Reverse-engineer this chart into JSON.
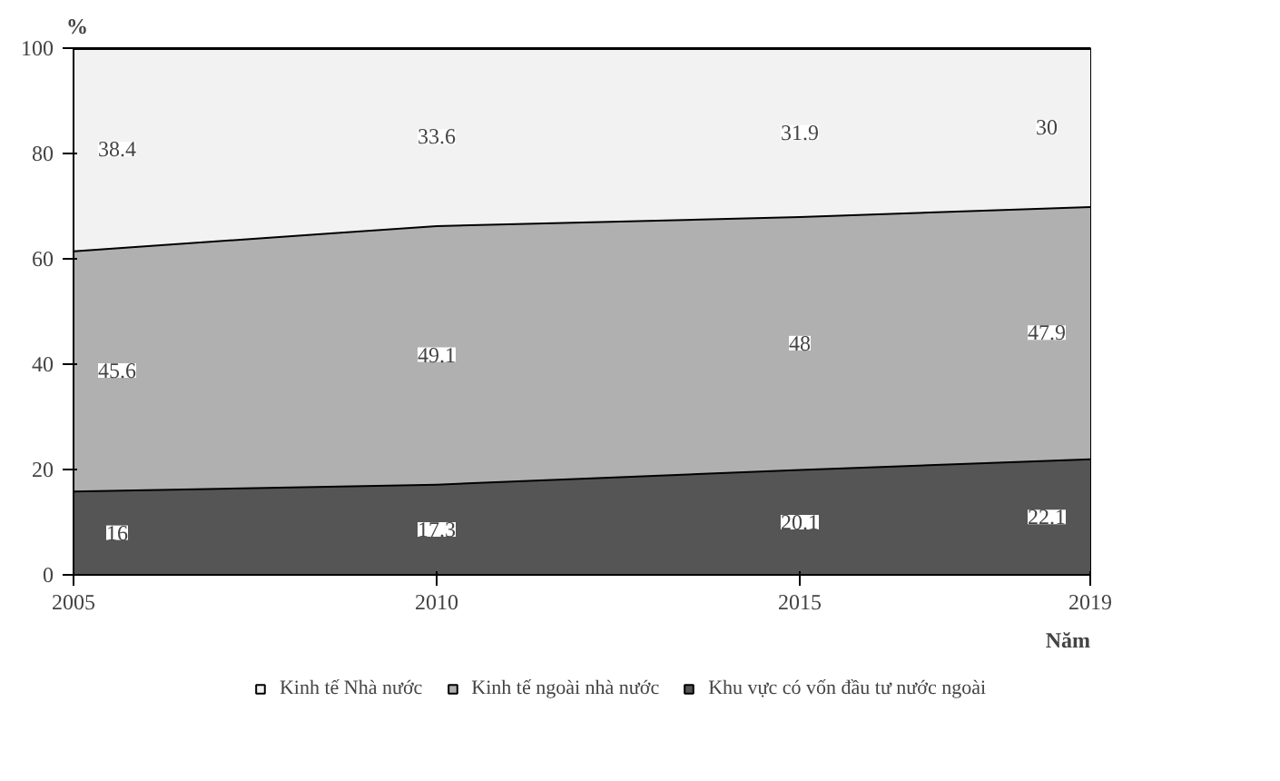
{
  "chart_data": {
    "type": "area",
    "stacked": true,
    "ylabel": "%",
    "xlabel": "Năm",
    "x": [
      2005,
      2010,
      2015,
      2019
    ],
    "xlim": [
      2005,
      2019
    ],
    "xticks": [
      2005,
      2010,
      2015,
      2019
    ],
    "ylim": [
      0,
      100
    ],
    "yticks": [
      0,
      20,
      40,
      60,
      80,
      100
    ],
    "legend": "bottom",
    "series": [
      {
        "name": "Khu vực có vốn đầu tư nước ngoài",
        "color": "#555555",
        "values": [
          16,
          17.3,
          20.1,
          22.1
        ]
      },
      {
        "name": "Kinh tế ngoài nhà nước",
        "color": "#b0b0b0",
        "values": [
          45.6,
          49.1,
          48,
          47.9
        ]
      },
      {
        "name": "Kinh tế Nhà nước",
        "color": "#f2f2f2",
        "values": [
          38.4,
          33.6,
          31.9,
          30
        ]
      }
    ],
    "annotations": [
      {
        "text": "16",
        "x": 2005.6,
        "y": 8
      },
      {
        "text": "17.3",
        "x": 2010,
        "y": 8.6
      },
      {
        "text": "20.1",
        "x": 2015,
        "y": 10
      },
      {
        "text": "22.1",
        "x": 2018.4,
        "y": 11
      },
      {
        "text": "45.6",
        "x": 2005.6,
        "y": 38.8
      },
      {
        "text": "49.1",
        "x": 2010,
        "y": 41.8
      },
      {
        "text": "48",
        "x": 2015,
        "y": 44
      },
      {
        "text": "47.9",
        "x": 2018.4,
        "y": 46
      },
      {
        "text": "38.4",
        "x": 2005.6,
        "y": 80.8
      },
      {
        "text": "33.6",
        "x": 2010,
        "y": 83.2
      },
      {
        "text": "31.9",
        "x": 2015,
        "y": 84
      },
      {
        "text": "30",
        "x": 2018.4,
        "y": 85
      }
    ]
  }
}
